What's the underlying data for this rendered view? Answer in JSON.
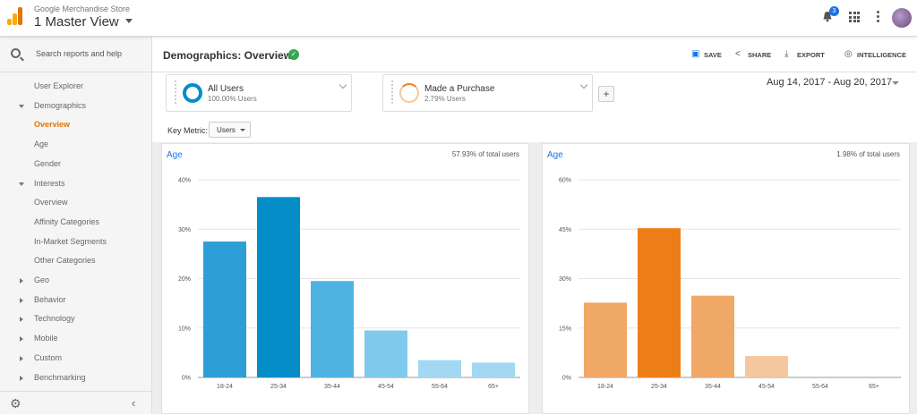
{
  "topbar": {
    "account": "Google Merchandise Store",
    "view": "1 Master View",
    "notifications_count": "3",
    "icons": [
      "analytics-logo-icon",
      "bell-icon",
      "apps-grid-icon",
      "more-vert-icon",
      "avatar"
    ]
  },
  "sidebar": {
    "search_placeholder": "Search reports and help",
    "items": [
      {
        "label": "User Explorer"
      },
      {
        "label": "Demographics",
        "expander": "expanded"
      },
      {
        "label": "Overview",
        "active": true
      },
      {
        "label": "Age"
      },
      {
        "label": "Gender"
      },
      {
        "label": "Interests",
        "expander": "expanded"
      },
      {
        "label": "Overview"
      },
      {
        "label": "Affinity Categories"
      },
      {
        "label": "In-Market Segments"
      },
      {
        "label": "Other Categories"
      },
      {
        "label": "Geo",
        "expander": "collapsed"
      },
      {
        "label": "Behavior",
        "expander": "collapsed"
      },
      {
        "label": "Technology",
        "expander": "collapsed"
      },
      {
        "label": "Mobile",
        "expander": "collapsed"
      },
      {
        "label": "Custom",
        "expander": "collapsed"
      },
      {
        "label": "Benchmarking",
        "expander": "collapsed"
      }
    ]
  },
  "header": {
    "title": "Demographics: Overview",
    "actions": {
      "save": "SAVE",
      "share": "SHARE",
      "export": "EXPORT",
      "intelligence": "INTELLIGENCE"
    }
  },
  "segments": [
    {
      "name": "All Users",
      "sub": "100.00% Users",
      "color": "#058dc7"
    },
    {
      "name": "Made a Purchase",
      "sub": "2.79% Users",
      "color": "#ed7e17"
    }
  ],
  "add_segment_label": "+",
  "date_range": "Aug 14, 2017 - Aug 20, 2017",
  "key_metric": {
    "label": "Key Metric:",
    "value": "Users"
  },
  "colors": {
    "accent": "#e37400",
    "link": "#1a73e8",
    "blue": "#058dc7",
    "orange": "#ed7e17"
  },
  "chart_data": [
    {
      "type": "bar",
      "title": "Age",
      "summary": "57.93% of total users",
      "categories": [
        "18-24",
        "25-34",
        "35-44",
        "45-54",
        "55-64",
        "65+"
      ],
      "values": [
        27.5,
        36.5,
        19.5,
        9.5,
        3.5,
        3.0
      ],
      "ylim": [
        0,
        40
      ],
      "yticks": [
        "0%",
        "10%",
        "20%",
        "30%",
        "40%"
      ],
      "bar_colors": [
        "#2b9fd6",
        "#058dc7",
        "#4fb3e2",
        "#7fc9ec",
        "#a2d8f2",
        "#a2d8f2"
      ]
    },
    {
      "type": "bar",
      "title": "Age",
      "summary": "1.98% of total users",
      "categories": [
        "18-24",
        "25-34",
        "35-44",
        "45-54",
        "55-64",
        "65+"
      ],
      "values": [
        22.7,
        45.3,
        24.8,
        6.5,
        0,
        0
      ],
      "ylim": [
        0,
        60
      ],
      "yticks": [
        "0%",
        "15%",
        "30%",
        "45%",
        "60%"
      ],
      "bar_colors": [
        "#f0a866",
        "#ed7e17",
        "#f0a866",
        "#f4c79e",
        "#f4c79e",
        "#f4c79e"
      ]
    }
  ]
}
